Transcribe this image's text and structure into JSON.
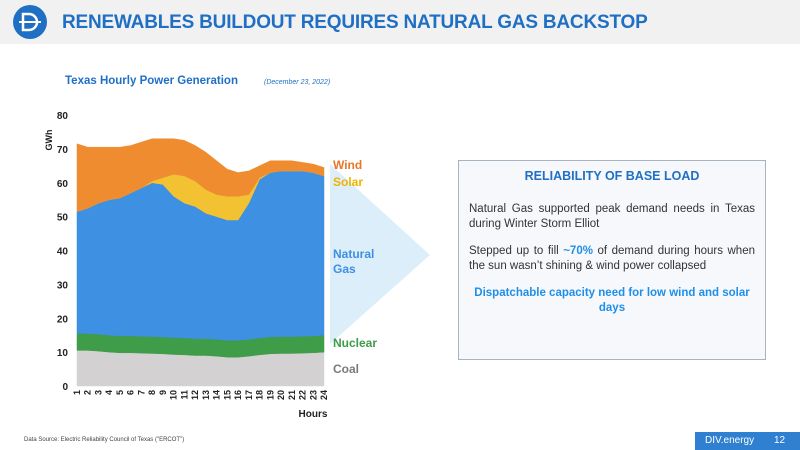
{
  "header": {
    "title": "RENEWABLES BUILDOUT REQUIRES NATURAL GAS BACKSTOP"
  },
  "chart_data": {
    "type": "stacked-area",
    "title": "Texas Hourly Power Generation",
    "subtitle": "(December 23, 2022)",
    "x_label": "Hours",
    "y_label": "GWh",
    "x": [
      1,
      2,
      3,
      4,
      5,
      6,
      7,
      8,
      9,
      10,
      11,
      12,
      13,
      14,
      15,
      16,
      17,
      18,
      19,
      20,
      21,
      22,
      23,
      24
    ],
    "xlim": [
      1,
      24
    ],
    "ylim": [
      0,
      80
    ],
    "yticks": [
      0,
      10,
      20,
      30,
      40,
      50,
      60,
      70,
      80
    ],
    "series": [
      {
        "name": "Coal",
        "color": "#d3d1d1",
        "label_color": "#7a7a7a",
        "values": [
          10.5,
          10.5,
          10.3,
          10,
          9.8,
          9.8,
          9.7,
          9.6,
          9.5,
          9.3,
          9.2,
          9,
          9,
          8.8,
          8.5,
          8.5,
          8.8,
          9.2,
          9.5,
          9.6,
          9.6,
          9.7,
          9.8,
          10
        ]
      },
      {
        "name": "Nuclear",
        "color": "#3f9c48",
        "label_color": "#3f9c48",
        "values": [
          5,
          5,
          5,
          5,
          5,
          5,
          5,
          5,
          5,
          5,
          5,
          5,
          5,
          5,
          5,
          5,
          5,
          5,
          5,
          5,
          5,
          5,
          5,
          5
        ]
      },
      {
        "name": "Natural Gas",
        "color": "#3d90e2",
        "label_color": "#3d90e2",
        "values": [
          36,
          37,
          38.7,
          40,
          40.7,
          42.2,
          43.8,
          45.4,
          45,
          41.7,
          39.8,
          39,
          37,
          36.2,
          35.5,
          35.5,
          40.2,
          46.8,
          48.5,
          48.9,
          48.9,
          48.8,
          48.2,
          47
        ]
      },
      {
        "name": "Solar",
        "color": "#f3c232",
        "label_color": "#f0b400",
        "values": [
          0,
          0,
          0,
          0,
          0,
          0,
          0,
          0.5,
          2,
          6.5,
          8,
          7.5,
          7,
          6.5,
          7,
          7,
          2.5,
          0.5,
          0,
          0,
          0,
          0,
          0,
          0
        ]
      },
      {
        "name": "Wind",
        "color": "#f08c30",
        "label_color": "#e8762b",
        "values": [
          20,
          18,
          16.5,
          15.5,
          15,
          14,
          13.5,
          12.5,
          11.5,
          10.5,
          10.5,
          10.5,
          11,
          10,
          8,
          7,
          7,
          3.5,
          3.5,
          3,
          3,
          2.5,
          2.5,
          2.5
        ]
      }
    ]
  },
  "box": {
    "title": "RELIABILITY OF BASE LOAD",
    "paragraph1": "Natural Gas supported peak demand needs in Texas during Winter Storm Elliot",
    "paragraph2_before": "Stepped up to fill ",
    "paragraph2_highlight": "~70%",
    "paragraph2_after": " of demand during hours when the sun wasn’t shining & wind power collapsed",
    "conclusion": "Dispatchable capacity need for low wind and solar days"
  },
  "footer": {
    "source": "Data Source: Electric Reliability Council of Texas (\"ERCOT\")",
    "brand": "DIV.energy",
    "page": "12"
  }
}
